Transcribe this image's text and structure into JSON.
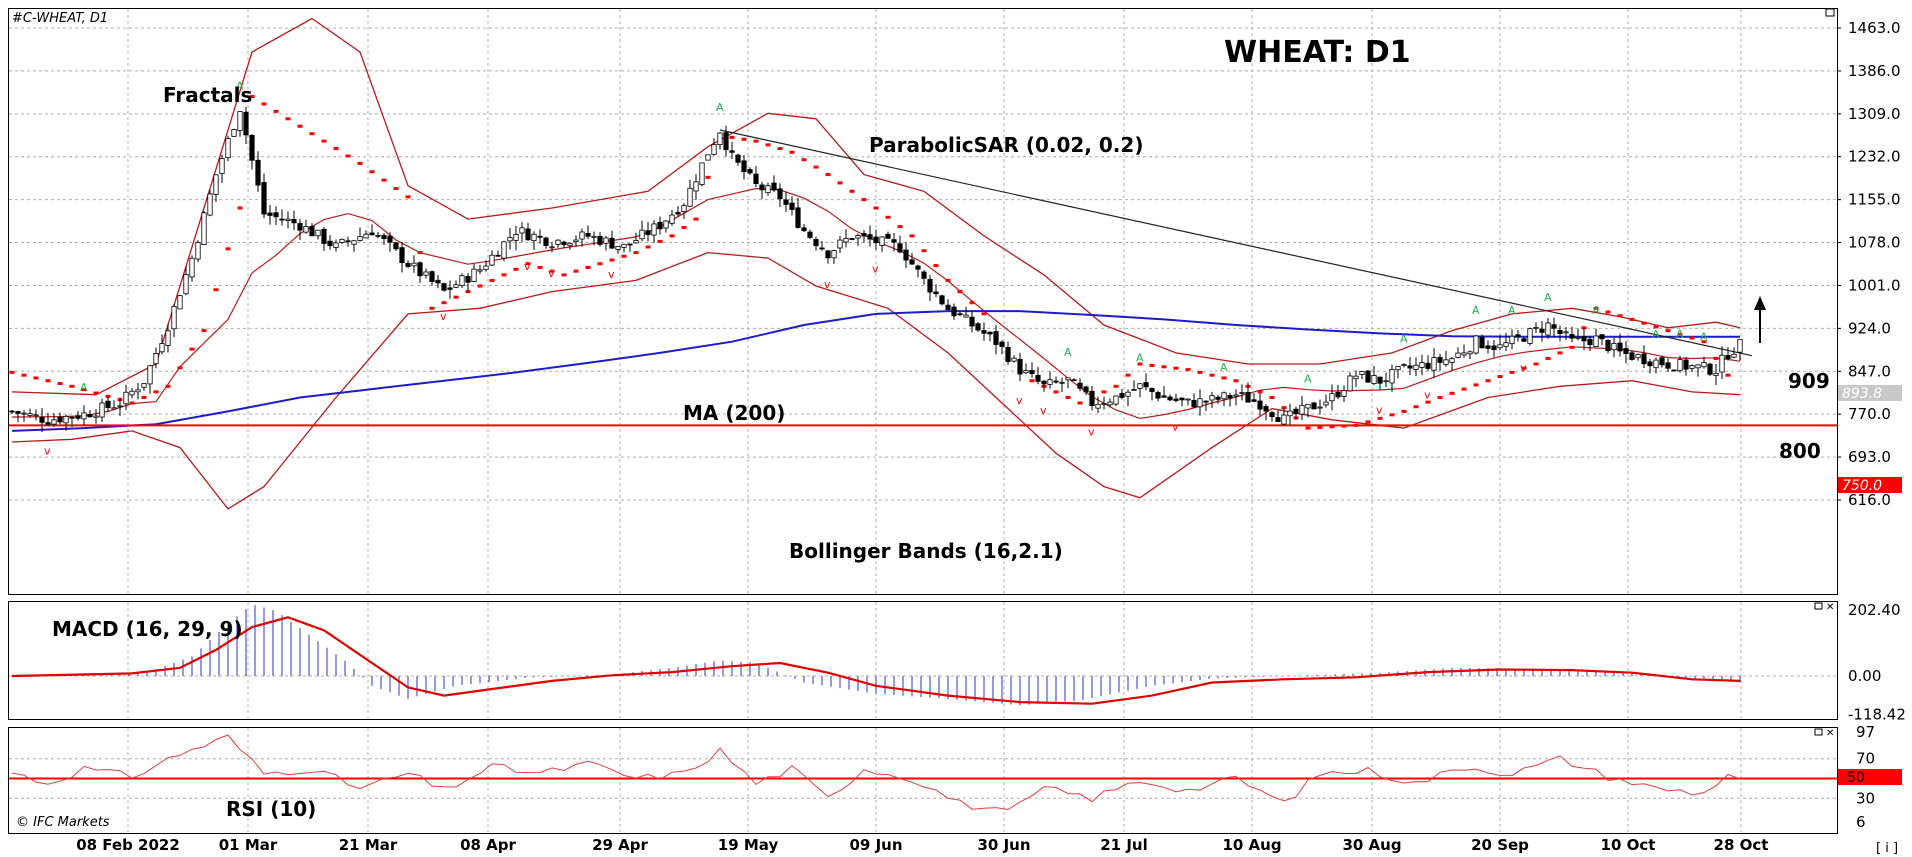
{
  "header": {
    "symbol": "#C-WHEAT, D1",
    "title": "WHEAT: D1",
    "copyright": "© IFC Markets"
  },
  "colors": {
    "up": "#ffffff",
    "down": "#000000",
    "ma": "#1c1cc8",
    "bands": "#b81a1a",
    "sar": "#ff0000",
    "fractal_up": "#22b14c",
    "fractal_down": "#e01010",
    "level": "#ff0000",
    "macd_hist": "#3030c8",
    "macd_signal": "#e00000",
    "rsi": "#e04040",
    "grid": "#b0b0b0"
  },
  "labels": {
    "fractals": "Fractals",
    "sar": "ParabolicSAR (0.02, 0.2)",
    "ma": "MA (200)",
    "bollinger": "Bollinger Bands (16,2.1)",
    "macd": "MACD (16, 29, 9)",
    "rsi": "RSI (10)",
    "level_909": "909",
    "level_800": "800",
    "corner_button": "[ i ]"
  },
  "chart_data": [
    {
      "type": "candlestick",
      "title": "WHEAT: D1",
      "x_ticks": [
        "08 Feb 2022",
        "01 Mar",
        "21 Mar",
        "08 Apr",
        "29 Apr",
        "19 May",
        "09 Jun",
        "30 Jun",
        "21 Jul",
        "10 Aug",
        "30 Aug",
        "20 Sep",
        "10 Oct",
        "28 Oct"
      ],
      "y_ticks": [
        "1463.0",
        "1386.0",
        "1309.0",
        "1232.0",
        "1155.0",
        "1078.0",
        "1001.0",
        "924.0",
        "847.0",
        "770.0",
        "693.0",
        "616.0"
      ],
      "ylim": [
        577,
        1500
      ],
      "last_price": "893.8",
      "support_level": "750.0",
      "grid": true,
      "close_points": [
        [
          0,
          775
        ],
        [
          6,
          760
        ],
        [
          12,
          770
        ],
        [
          18,
          790
        ],
        [
          22,
          830
        ],
        [
          26,
          930
        ],
        [
          30,
          1050
        ],
        [
          34,
          1200
        ],
        [
          38,
          1320
        ],
        [
          42,
          1130
        ],
        [
          48,
          1110
        ],
        [
          54,
          1070
        ],
        [
          60,
          1100
        ],
        [
          66,
          1040
        ],
        [
          72,
          990
        ],
        [
          78,
          1030
        ],
        [
          84,
          1100
        ],
        [
          90,
          1080
        ],
        [
          96,
          1090
        ],
        [
          102,
          1070
        ],
        [
          108,
          1110
        ],
        [
          112,
          1150
        ],
        [
          116,
          1240
        ],
        [
          118,
          1280
        ],
        [
          120,
          1230
        ],
        [
          124,
          1180
        ],
        [
          128,
          1160
        ],
        [
          132,
          1100
        ],
        [
          136,
          1060
        ],
        [
          140,
          1090
        ],
        [
          144,
          1080
        ],
        [
          148,
          1070
        ],
        [
          152,
          1010
        ],
        [
          156,
          960
        ],
        [
          160,
          930
        ],
        [
          164,
          900
        ],
        [
          168,
          850
        ],
        [
          172,
          820
        ],
        [
          176,
          830
        ],
        [
          180,
          790
        ],
        [
          184,
          800
        ],
        [
          188,
          820
        ],
        [
          192,
          800
        ],
        [
          196,
          790
        ],
        [
          200,
          795
        ],
        [
          204,
          805
        ],
        [
          208,
          790
        ],
        [
          212,
          760
        ],
        [
          216,
          780
        ],
        [
          220,
          800
        ],
        [
          224,
          840
        ],
        [
          228,
          830
        ],
        [
          232,
          850
        ],
        [
          236,
          860
        ],
        [
          240,
          870
        ],
        [
          244,
          900
        ],
        [
          248,
          890
        ],
        [
          252,
          910
        ],
        [
          256,
          930
        ],
        [
          260,
          900
        ],
        [
          264,
          905
        ],
        [
          268,
          880
        ],
        [
          272,
          870
        ],
        [
          276,
          860
        ],
        [
          280,
          855
        ],
        [
          284,
          850
        ],
        [
          286,
          880
        ],
        [
          288,
          894
        ]
      ],
      "ma200_points": [
        [
          0,
          740
        ],
        [
          12,
          745
        ],
        [
          24,
          752
        ],
        [
          36,
          775
        ],
        [
          48,
          800
        ],
        [
          60,
          815
        ],
        [
          72,
          830
        ],
        [
          84,
          845
        ],
        [
          96,
          862
        ],
        [
          108,
          880
        ],
        [
          120,
          900
        ],
        [
          132,
          930
        ],
        [
          144,
          950
        ],
        [
          156,
          955
        ],
        [
          168,
          955
        ],
        [
          180,
          948
        ],
        [
          192,
          940
        ],
        [
          204,
          930
        ],
        [
          216,
          922
        ],
        [
          228,
          915
        ],
        [
          240,
          910
        ],
        [
          252,
          909
        ],
        [
          264,
          909
        ],
        [
          276,
          909
        ],
        [
          288,
          909
        ]
      ],
      "bollinger_upper_points": [
        [
          0,
          810
        ],
        [
          14,
          805
        ],
        [
          24,
          860
        ],
        [
          32,
          1140
        ],
        [
          40,
          1420
        ],
        [
          50,
          1480
        ],
        [
          58,
          1420
        ],
        [
          66,
          1180
        ],
        [
          76,
          1120
        ],
        [
          90,
          1140
        ],
        [
          106,
          1170
        ],
        [
          116,
          1250
        ],
        [
          126,
          1310
        ],
        [
          134,
          1300
        ],
        [
          142,
          1200
        ],
        [
          152,
          1170
        ],
        [
          162,
          1090
        ],
        [
          172,
          1020
        ],
        [
          182,
          930
        ],
        [
          194,
          880
        ],
        [
          206,
          860
        ],
        [
          218,
          860
        ],
        [
          230,
          880
        ],
        [
          240,
          920
        ],
        [
          250,
          950
        ],
        [
          260,
          960
        ],
        [
          268,
          945
        ],
        [
          276,
          925
        ],
        [
          284,
          935
        ],
        [
          288,
          925
        ]
      ],
      "bollinger_lower_points": [
        [
          0,
          720
        ],
        [
          10,
          725
        ],
        [
          20,
          740
        ],
        [
          28,
          710
        ],
        [
          36,
          600
        ],
        [
          42,
          640
        ],
        [
          54,
          800
        ],
        [
          66,
          950
        ],
        [
          78,
          960
        ],
        [
          90,
          990
        ],
        [
          104,
          1010
        ],
        [
          116,
          1060
        ],
        [
          126,
          1050
        ],
        [
          134,
          1000
        ],
        [
          146,
          960
        ],
        [
          156,
          880
        ],
        [
          166,
          780
        ],
        [
          174,
          700
        ],
        [
          182,
          640
        ],
        [
          188,
          620
        ],
        [
          200,
          710
        ],
        [
          210,
          780
        ],
        [
          220,
          760
        ],
        [
          232,
          745
        ],
        [
          246,
          800
        ],
        [
          258,
          820
        ],
        [
          270,
          830
        ],
        [
          280,
          810
        ],
        [
          288,
          805
        ]
      ],
      "trendline": {
        "start": [
          118,
          1280
        ],
        "end": [
          290,
          875
        ]
      },
      "sar_points": [
        [
          0,
          845
        ],
        [
          10,
          820
        ],
        [
          20,
          790
        ],
        [
          26,
          820
        ],
        [
          32,
          920
        ],
        [
          38,
          1140
        ],
        [
          40,
          1340
        ],
        [
          46,
          1300
        ],
        [
          52,
          1260
        ],
        [
          58,
          1220
        ],
        [
          66,
          1160
        ],
        [
          70,
          960
        ],
        [
          78,
          1000
        ],
        [
          86,
          1040
        ],
        [
          92,
          1020
        ],
        [
          98,
          1040
        ],
        [
          104,
          1060
        ],
        [
          110,
          1090
        ],
        [
          114,
          1120
        ],
        [
          118,
          1270
        ],
        [
          124,
          1260
        ],
        [
          130,
          1240
        ],
        [
          136,
          1200
        ],
        [
          144,
          1140
        ],
        [
          150,
          1090
        ],
        [
          156,
          1010
        ],
        [
          162,
          950
        ],
        [
          166,
          880
        ],
        [
          170,
          830
        ],
        [
          178,
          790
        ],
        [
          184,
          820
        ],
        [
          188,
          860
        ],
        [
          196,
          850
        ],
        [
          204,
          830
        ],
        [
          210,
          800
        ],
        [
          216,
          745
        ],
        [
          224,
          750
        ],
        [
          232,
          775
        ],
        [
          238,
          800
        ],
        [
          246,
          830
        ],
        [
          254,
          860
        ],
        [
          260,
          890
        ],
        [
          264,
          960
        ],
        [
          270,
          940
        ],
        [
          276,
          920
        ],
        [
          282,
          900
        ],
        [
          286,
          840
        ]
      ],
      "annotation": "arrow-up"
    },
    {
      "type": "line",
      "title": "MACD (16, 29, 9)",
      "y_ticks": [
        "202.40",
        "0.00",
        "-118.42"
      ],
      "ylim": [
        -155,
        240
      ],
      "signal_points": [
        [
          0,
          0
        ],
        [
          20,
          8
        ],
        [
          28,
          25
        ],
        [
          34,
          80
        ],
        [
          40,
          150
        ],
        [
          46,
          180
        ],
        [
          52,
          140
        ],
        [
          60,
          40
        ],
        [
          66,
          -35
        ],
        [
          72,
          -60
        ],
        [
          80,
          -40
        ],
        [
          90,
          -15
        ],
        [
          100,
          2
        ],
        [
          110,
          12
        ],
        [
          120,
          30
        ],
        [
          128,
          40
        ],
        [
          136,
          10
        ],
        [
          144,
          -30
        ],
        [
          156,
          -60
        ],
        [
          168,
          -80
        ],
        [
          180,
          -85
        ],
        [
          190,
          -60
        ],
        [
          200,
          -20
        ],
        [
          212,
          -10
        ],
        [
          224,
          -4
        ],
        [
          236,
          12
        ],
        [
          248,
          20
        ],
        [
          260,
          18
        ],
        [
          270,
          10
        ],
        [
          280,
          -10
        ],
        [
          288,
          -15
        ]
      ],
      "hist_peaks": [
        [
          0,
          0
        ],
        [
          22,
          8
        ],
        [
          30,
          60
        ],
        [
          36,
          160
        ],
        [
          40,
          220
        ],
        [
          44,
          200
        ],
        [
          50,
          120
        ],
        [
          56,
          40
        ],
        [
          60,
          -30
        ],
        [
          66,
          -70
        ],
        [
          74,
          -30
        ],
        [
          86,
          -5
        ],
        [
          100,
          5
        ],
        [
          110,
          25
        ],
        [
          118,
          48
        ],
        [
          124,
          40
        ],
        [
          132,
          -20
        ],
        [
          144,
          -55
        ],
        [
          156,
          -70
        ],
        [
          168,
          -90
        ],
        [
          178,
          -75
        ],
        [
          190,
          -30
        ],
        [
          200,
          -8
        ],
        [
          212,
          0
        ],
        [
          228,
          10
        ],
        [
          240,
          25
        ],
        [
          256,
          22
        ],
        [
          268,
          15
        ],
        [
          278,
          -5
        ],
        [
          288,
          -20
        ]
      ]
    },
    {
      "type": "line",
      "title": "RSI (10)",
      "y_ticks": [
        "97",
        "70",
        "50",
        "30",
        "6"
      ],
      "ylim": [
        6,
        97
      ],
      "level": "50",
      "rsi_points": [
        [
          0,
          56
        ],
        [
          6,
          45
        ],
        [
          12,
          60
        ],
        [
          20,
          52
        ],
        [
          28,
          75
        ],
        [
          36,
          92
        ],
        [
          42,
          55
        ],
        [
          50,
          60
        ],
        [
          58,
          40
        ],
        [
          66,
          55
        ],
        [
          72,
          38
        ],
        [
          80,
          62
        ],
        [
          88,
          55
        ],
        [
          96,
          65
        ],
        [
          104,
          50
        ],
        [
          112,
          55
        ],
        [
          118,
          78
        ],
        [
          124,
          45
        ],
        [
          130,
          60
        ],
        [
          136,
          30
        ],
        [
          142,
          60
        ],
        [
          150,
          50
        ],
        [
          158,
          25
        ],
        [
          166,
          15
        ],
        [
          172,
          40
        ],
        [
          180,
          30
        ],
        [
          188,
          48
        ],
        [
          196,
          38
        ],
        [
          204,
          50
        ],
        [
          212,
          25
        ],
        [
          218,
          55
        ],
        [
          226,
          58
        ],
        [
          234,
          45
        ],
        [
          242,
          62
        ],
        [
          250,
          55
        ],
        [
          258,
          70
        ],
        [
          266,
          52
        ],
        [
          274,
          40
        ],
        [
          282,
          35
        ],
        [
          286,
          55
        ],
        [
          288,
          50
        ]
      ]
    }
  ]
}
